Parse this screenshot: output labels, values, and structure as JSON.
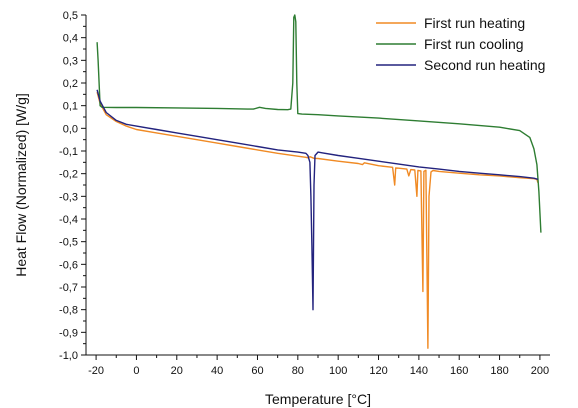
{
  "chart_data": {
    "type": "line",
    "title": "",
    "xlabel": "Temperature [°C]",
    "ylabel": "Heat Flow (Normalized) [W/g]",
    "xlim": [
      -25,
      205
    ],
    "ylim": [
      -1.0,
      0.5
    ],
    "x_ticks": [
      -20,
      0,
      20,
      40,
      60,
      80,
      100,
      120,
      140,
      160,
      180,
      200
    ],
    "x_tick_labels": [
      "-20",
      "0",
      "20",
      "40",
      "60",
      "80",
      "100",
      "120",
      "140",
      "160",
      "180",
      "200"
    ],
    "y_ticks": [
      0.5,
      0.4,
      0.3,
      0.2,
      0.1,
      0.0,
      -0.1,
      -0.2,
      -0.3,
      -0.4,
      -0.5,
      -0.6,
      -0.7,
      -0.8,
      -0.9,
      -1.0
    ],
    "y_tick_labels": [
      "0,5",
      "0,4",
      "0,3",
      "0,2",
      "0,1",
      "0,0",
      "-0,1",
      "-0,2",
      "-0,3",
      "-0,4",
      "-0,5",
      "-0,6",
      "-0,7",
      "-0,8",
      "-0,9",
      "-1,0"
    ],
    "grid": false,
    "legend_position": "top-right",
    "series": [
      {
        "name": "First run heating",
        "color": "#f08a24",
        "points": [
          [
            -19.5,
            0.16
          ],
          [
            -18,
            0.11
          ],
          [
            -15,
            0.06
          ],
          [
            -10,
            0.03
          ],
          [
            -5,
            0.01
          ],
          [
            0,
            -0.005
          ],
          [
            10,
            -0.02
          ],
          [
            20,
            -0.035
          ],
          [
            30,
            -0.05
          ],
          [
            40,
            -0.065
          ],
          [
            50,
            -0.08
          ],
          [
            60,
            -0.095
          ],
          [
            70,
            -0.11
          ],
          [
            80,
            -0.123
          ],
          [
            84,
            -0.128
          ],
          [
            85,
            -0.13
          ],
          [
            86,
            -0.125
          ],
          [
            88,
            -0.132
          ],
          [
            90,
            -0.133
          ],
          [
            100,
            -0.145
          ],
          [
            110,
            -0.155
          ],
          [
            112,
            -0.16
          ],
          [
            113,
            -0.152
          ],
          [
            120,
            -0.165
          ],
          [
            127,
            -0.172
          ],
          [
            128,
            -0.25
          ],
          [
            128.5,
            -0.175
          ],
          [
            130,
            -0.176
          ],
          [
            134,
            -0.18
          ],
          [
            135,
            -0.21
          ],
          [
            136,
            -0.182
          ],
          [
            138,
            -0.184
          ],
          [
            139,
            -0.3
          ],
          [
            139.5,
            -0.186
          ],
          [
            141,
            -0.188
          ],
          [
            142,
            -0.72
          ],
          [
            142.5,
            -0.19
          ],
          [
            143.5,
            -0.185
          ],
          [
            144.5,
            -0.97
          ],
          [
            145,
            -0.3
          ],
          [
            146,
            -0.192
          ],
          [
            147,
            -0.186
          ],
          [
            150,
            -0.19
          ],
          [
            160,
            -0.198
          ],
          [
            170,
            -0.205
          ],
          [
            180,
            -0.21
          ],
          [
            190,
            -0.218
          ],
          [
            197,
            -0.222
          ],
          [
            198.5,
            -0.225
          ],
          [
            199,
            -0.24
          ]
        ]
      },
      {
        "name": "First run cooling",
        "color": "#2e7d32",
        "points": [
          [
            -19.5,
            0.38
          ],
          [
            -19,
            0.3
          ],
          [
            -18.5,
            0.2
          ],
          [
            -18,
            0.1
          ],
          [
            -17,
            0.093
          ],
          [
            -10,
            0.092
          ],
          [
            0,
            0.092
          ],
          [
            20,
            0.09
          ],
          [
            40,
            0.088
          ],
          [
            55,
            0.085
          ],
          [
            58,
            0.085
          ],
          [
            61,
            0.093
          ],
          [
            64,
            0.088
          ],
          [
            70,
            0.083
          ],
          [
            75,
            0.082
          ],
          [
            76.5,
            0.085
          ],
          [
            77.5,
            0.2
          ],
          [
            78,
            0.49
          ],
          [
            78.5,
            0.5
          ],
          [
            79,
            0.47
          ],
          [
            79.5,
            0.2
          ],
          [
            80,
            0.065
          ],
          [
            82,
            0.063
          ],
          [
            90,
            0.06
          ],
          [
            100,
            0.055
          ],
          [
            120,
            0.045
          ],
          [
            140,
            0.033
          ],
          [
            160,
            0.02
          ],
          [
            180,
            0.005
          ],
          [
            190,
            -0.01
          ],
          [
            195,
            -0.04
          ],
          [
            197,
            -0.09
          ],
          [
            198.5,
            -0.16
          ],
          [
            199.5,
            -0.28
          ],
          [
            200.5,
            -0.46
          ]
        ]
      },
      {
        "name": "Second run heating",
        "color": "#23237e",
        "points": [
          [
            -19.5,
            0.17
          ],
          [
            -18,
            0.12
          ],
          [
            -15,
            0.07
          ],
          [
            -10,
            0.035
          ],
          [
            -5,
            0.018
          ],
          [
            0,
            0.01
          ],
          [
            10,
            -0.005
          ],
          [
            20,
            -0.02
          ],
          [
            30,
            -0.035
          ],
          [
            40,
            -0.05
          ],
          [
            50,
            -0.065
          ],
          [
            60,
            -0.08
          ],
          [
            70,
            -0.095
          ],
          [
            80,
            -0.105
          ],
          [
            84,
            -0.11
          ],
          [
            85,
            -0.12
          ],
          [
            86,
            -0.15
          ],
          [
            86.5,
            -0.3
          ],
          [
            87,
            -0.52
          ],
          [
            87.5,
            -0.8
          ],
          [
            88,
            -0.25
          ],
          [
            88.5,
            -0.12
          ],
          [
            90,
            -0.105
          ],
          [
            92,
            -0.108
          ],
          [
            100,
            -0.12
          ],
          [
            110,
            -0.132
          ],
          [
            120,
            -0.145
          ],
          [
            130,
            -0.158
          ],
          [
            140,
            -0.17
          ],
          [
            150,
            -0.18
          ],
          [
            160,
            -0.19
          ],
          [
            170,
            -0.198
          ],
          [
            180,
            -0.205
          ],
          [
            190,
            -0.213
          ],
          [
            197,
            -0.22
          ],
          [
            199,
            -0.225
          ]
        ]
      }
    ]
  }
}
